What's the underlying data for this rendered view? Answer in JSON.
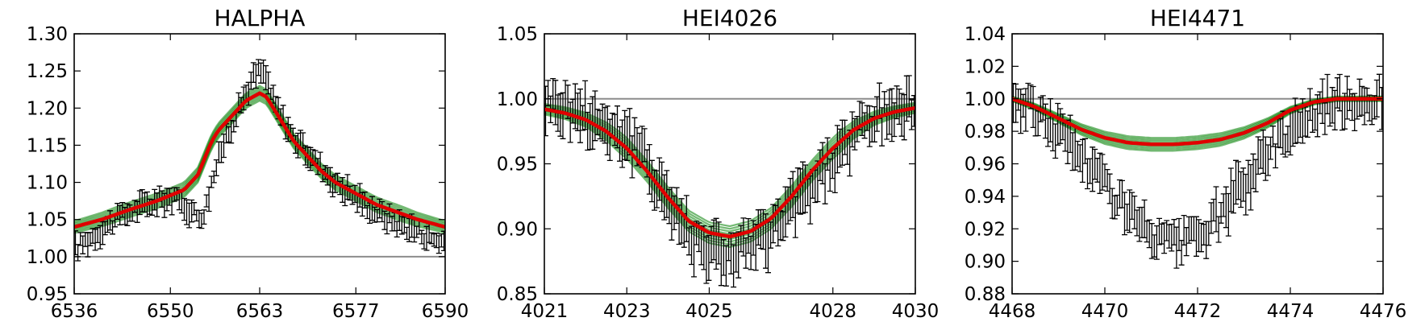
{
  "colors": {
    "data": "#000000",
    "models": "#008000",
    "best_fit": "#e00000",
    "reference_line": "#8c8c8c"
  },
  "chart_data": [
    {
      "type": "line",
      "title": "HALPHA",
      "xlim": [
        6536,
        6590
      ],
      "ylim": [
        0.95,
        1.3
      ],
      "x_ticks": [
        "6536",
        "6550",
        "6563",
        "6577",
        "6590"
      ],
      "y_ticks": [
        "0.95",
        "1.00",
        "1.05",
        "1.10",
        "1.15",
        "1.20",
        "1.25",
        "1.30"
      ],
      "reference_y": 1.0,
      "observed": {
        "x": [
          6536,
          6539,
          6542,
          6545,
          6548,
          6550,
          6552,
          6554,
          6555,
          6556,
          6557,
          6558,
          6559,
          6560,
          6561,
          6562,
          6563,
          6564,
          6565,
          6566,
          6567,
          6568,
          6570,
          6572,
          6574,
          6577,
          6580,
          6583,
          6586,
          6588,
          6590
        ],
        "y": [
          1.01,
          1.03,
          1.05,
          1.065,
          1.075,
          1.08,
          1.07,
          1.055,
          1.06,
          1.1,
          1.13,
          1.16,
          1.18,
          1.2,
          1.22,
          1.24,
          1.25,
          1.24,
          1.21,
          1.19,
          1.175,
          1.16,
          1.14,
          1.12,
          1.1,
          1.08,
          1.06,
          1.045,
          1.035,
          1.025,
          1.02
        ],
        "error": 0.012
      },
      "best_fit": {
        "x": [
          6536,
          6540,
          6544,
          6548,
          6552,
          6554,
          6556,
          6557,
          6558,
          6559,
          6560,
          6561,
          6562,
          6563,
          6564,
          6565,
          6566,
          6567,
          6568,
          6570,
          6572,
          6574,
          6577,
          6580,
          6583,
          6586,
          6590
        ],
        "y": [
          1.04,
          1.05,
          1.063,
          1.075,
          1.09,
          1.11,
          1.155,
          1.17,
          1.18,
          1.19,
          1.2,
          1.21,
          1.215,
          1.22,
          1.215,
          1.2,
          1.185,
          1.17,
          1.155,
          1.135,
          1.115,
          1.1,
          1.085,
          1.07,
          1.06,
          1.05,
          1.04
        ]
      },
      "model_spread": 0.01
    },
    {
      "type": "line",
      "title": "HEI4026",
      "xlim": [
        4021,
        4030
      ],
      "ylim": [
        0.85,
        1.05
      ],
      "x_ticks": [
        "4021",
        "4023",
        "4025",
        "4028",
        "4030"
      ],
      "y_ticks": [
        "0.85",
        "0.90",
        "0.95",
        "1.00",
        "1.05"
      ],
      "reference_y": 1.0,
      "observed": {
        "x": [
          4021.0,
          4021.4,
          4021.8,
          4022.2,
          4022.6,
          4023.0,
          4023.4,
          4023.8,
          4024.2,
          4024.6,
          4025.0,
          4025.4,
          4025.8,
          4026.2,
          4026.6,
          4027.0,
          4027.4,
          4027.8,
          4028.2,
          4028.6,
          4029.0,
          4029.4,
          4029.8,
          4030.0
        ],
        "y": [
          1.0,
          0.995,
          0.99,
          0.985,
          0.978,
          0.97,
          0.955,
          0.935,
          0.91,
          0.895,
          0.885,
          0.88,
          0.885,
          0.89,
          0.9,
          0.915,
          0.93,
          0.945,
          0.96,
          0.975,
          0.985,
          0.99,
          0.993,
          0.995
        ],
        "error": 0.015
      },
      "best_fit": {
        "x": [
          4021.0,
          4021.5,
          4022.0,
          4022.5,
          4023.0,
          4023.5,
          4024.0,
          4024.5,
          4025.0,
          4025.5,
          4026.0,
          4026.5,
          4027.0,
          4027.5,
          4028.0,
          4028.5,
          4029.0,
          4029.5,
          4030.0
        ],
        "y": [
          0.992,
          0.989,
          0.984,
          0.975,
          0.962,
          0.944,
          0.924,
          0.906,
          0.897,
          0.894,
          0.898,
          0.908,
          0.925,
          0.945,
          0.962,
          0.976,
          0.985,
          0.99,
          0.993
        ]
      },
      "model_spread": 0.008
    },
    {
      "type": "line",
      "title": "HEI4471",
      "xlim": [
        4468,
        4476
      ],
      "ylim": [
        0.88,
        1.04
      ],
      "x_ticks": [
        "4468",
        "4470",
        "4472",
        "4474",
        "4476"
      ],
      "y_ticks": [
        "0.88",
        "0.90",
        "0.92",
        "0.94",
        "0.96",
        "0.98",
        "1.00",
        "1.02",
        "1.04"
      ],
      "reference_y": 1.0,
      "observed": {
        "x": [
          4468.0,
          4468.4,
          4468.8,
          4469.2,
          4469.6,
          4470.0,
          4470.4,
          4470.8,
          4471.2,
          4471.6,
          4472.0,
          4472.4,
          4472.8,
          4473.2,
          4473.6,
          4474.0,
          4474.4,
          4474.8,
          4475.2,
          4475.6,
          4476.0
        ],
        "y": [
          1.0,
          0.995,
          0.985,
          0.975,
          0.962,
          0.948,
          0.935,
          0.92,
          0.912,
          0.91,
          0.915,
          0.925,
          0.94,
          0.955,
          0.97,
          0.982,
          0.99,
          0.995,
          0.998,
          1.0,
          1.0
        ],
        "error": 0.01
      },
      "best_fit": {
        "x": [
          4468.0,
          4468.5,
          4469.0,
          4469.5,
          4470.0,
          4470.5,
          4471.0,
          4471.5,
          4472.0,
          4472.5,
          4473.0,
          4473.5,
          4474.0,
          4474.5,
          4475.0,
          4475.5,
          4476.0
        ],
        "y": [
          1.0,
          0.995,
          0.988,
          0.981,
          0.976,
          0.973,
          0.972,
          0.972,
          0.973,
          0.975,
          0.979,
          0.985,
          0.993,
          0.998,
          1.0,
          1.0,
          1.0
        ]
      },
      "model_spread": 0.004
    }
  ]
}
